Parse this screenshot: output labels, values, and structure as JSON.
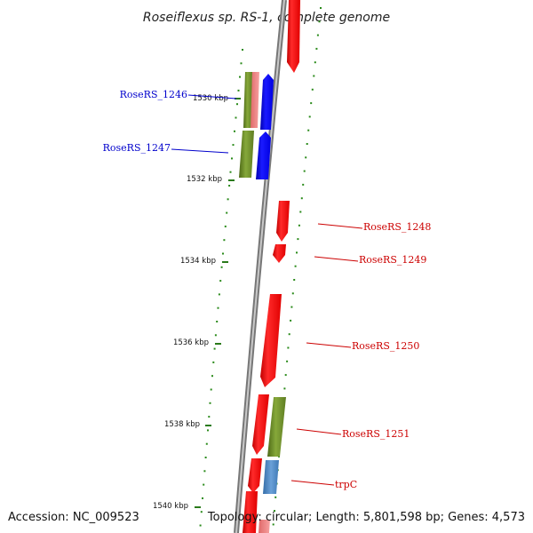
{
  "header": {
    "title": "Roseiflexus sp. RS-1, complete genome"
  },
  "footer": {
    "accession": "Accession: NC_009523",
    "topology": "Topology: circular; Length: 5,801,598 bp; Genes: 4,573"
  },
  "colors": {
    "backbone": "#888888",
    "tick": "#2a7a1a",
    "dot": "#2a8a1a",
    "forward_gene": "#ff0000",
    "blue_gene": "#0000ff",
    "olive_gene": "#6b8a2a",
    "pink_gene": "#f08080",
    "steel_gene": "#4f86c0",
    "label_blue": "#0000cc",
    "label_red": "#cc0000"
  },
  "kbp_ticks": [
    {
      "label": "1530 kbp"
    },
    {
      "label": "1532 kbp"
    },
    {
      "label": "1534 kbp"
    },
    {
      "label": "1536 kbp"
    },
    {
      "label": "1538 kbp"
    },
    {
      "label": "1540 kbp"
    }
  ],
  "gene_labels": [
    {
      "name": "RoseRS_1246",
      "color": "label_blue"
    },
    {
      "name": "RoseRS_1247",
      "color": "label_blue"
    },
    {
      "name": "RoseRS_1248",
      "color": "label_red"
    },
    {
      "name": "RoseRS_1249",
      "color": "label_red"
    },
    {
      "name": "RoseRS_1250",
      "color": "label_red"
    },
    {
      "name": "RoseRS_1251",
      "color": "label_red"
    },
    {
      "name": "trpC",
      "color": "label_red"
    }
  ]
}
